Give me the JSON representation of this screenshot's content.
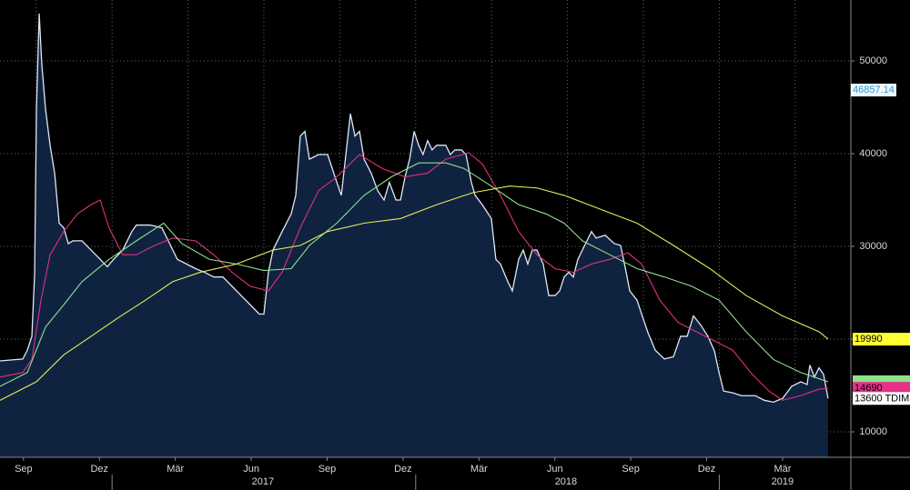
{
  "chart_data": {
    "type": "line",
    "xlim": [
      -0.43,
      33.2
    ],
    "ylim": [
      7255,
      56570
    ],
    "yticks": [
      10000,
      20000,
      30000,
      40000,
      50000
    ],
    "grid": true,
    "xgrid": [
      1,
      4,
      7,
      10,
      13,
      16,
      19,
      22,
      25,
      28,
      31
    ],
    "xticks": [
      {
        "value": 0.5,
        "label": "Sep"
      },
      {
        "value": 3.5,
        "label": "Dez"
      },
      {
        "value": 6.5,
        "label": "Mär"
      },
      {
        "value": 9.5,
        "label": "Jun"
      },
      {
        "value": 12.5,
        "label": "Sep"
      },
      {
        "value": 15.5,
        "label": "Dez"
      },
      {
        "value": 18.5,
        "label": "Mär"
      },
      {
        "value": 21.5,
        "label": "Jun"
      },
      {
        "value": 24.5,
        "label": "Sep"
      },
      {
        "value": 27.5,
        "label": "Dez"
      },
      {
        "value": 30.5,
        "label": "Mär"
      }
    ],
    "year_ticks": [
      {
        "value": 9.96,
        "label": "2017"
      },
      {
        "value": 21.94,
        "label": "2018"
      },
      {
        "value": 30.5,
        "label": "2019"
      }
    ],
    "year_separators": [
      4,
      16,
      28
    ],
    "marker": 46857.14,
    "series": [
      {
        "color": "#dfe8f5",
        "fill": "#0f2341",
        "show_last_value": true,
        "tag_color": "#ffffff",
        "unit": "TDIM",
        "x": [
          -0.43,
          0.47,
          0.65,
          0.83,
          0.94,
          1.01,
          1.12,
          1.22,
          1.37,
          1.55,
          1.73,
          1.91,
          2.09,
          2.27,
          2.45,
          2.81,
          3.17,
          3.53,
          3.81,
          4.06,
          4.42,
          4.78,
          4.96,
          5.5,
          5.97,
          6.22,
          6.58,
          6.94,
          7.3,
          7.66,
          8.02,
          8.38,
          8.74,
          9.1,
          9.46,
          9.82,
          10.0,
          10.18,
          10.36,
          10.72,
          11.08,
          11.26,
          11.44,
          11.62,
          11.8,
          12.16,
          12.52,
          12.81,
          13.06,
          13.24,
          13.42,
          13.6,
          13.78,
          13.96,
          14.24,
          14.5,
          14.75,
          14.96,
          15.22,
          15.4,
          15.58,
          15.76,
          15.94,
          16.12,
          16.29,
          16.47,
          16.65,
          16.83,
          17.19,
          17.37,
          17.55,
          17.81,
          17.99,
          18.2,
          18.35,
          18.63,
          18.99,
          19.17,
          19.35,
          19.64,
          19.82,
          20.07,
          20.25,
          20.43,
          20.61,
          20.79,
          21.04,
          21.26,
          21.51,
          21.69,
          21.87,
          22.05,
          22.23,
          22.41,
          22.77,
          22.95,
          23.13,
          23.49,
          23.85,
          24.1,
          24.32,
          24.46,
          24.75,
          24.93,
          25.18,
          25.47,
          25.83,
          26.19,
          26.47,
          26.73,
          26.98,
          27.27,
          27.55,
          27.81,
          27.99,
          28.17,
          28.53,
          28.88,
          29.42,
          29.78,
          30.14,
          30.5,
          30.86,
          31.22,
          31.47,
          31.58,
          31.76,
          31.94,
          32.12,
          32.3
        ],
        "values": [
          17650,
          17850,
          18800,
          20300,
          27150,
          44800,
          55100,
          49700,
          44800,
          40900,
          37900,
          32500,
          32000,
          30300,
          30600,
          30600,
          29600,
          28600,
          27800,
          28600,
          29600,
          31600,
          32300,
          32300,
          32000,
          30600,
          28600,
          28100,
          27600,
          27200,
          26700,
          26700,
          25700,
          24700,
          23700,
          22700,
          22700,
          27200,
          29600,
          31600,
          33500,
          35500,
          41900,
          42400,
          39400,
          39900,
          39900,
          37500,
          35500,
          39900,
          44300,
          41900,
          42400,
          39400,
          37900,
          36000,
          35000,
          36900,
          35000,
          35000,
          37500,
          39400,
          42400,
          40900,
          39900,
          41400,
          40400,
          40900,
          40900,
          39900,
          40400,
          40400,
          39900,
          36900,
          35500,
          34500,
          33000,
          28600,
          28100,
          26200,
          25200,
          28600,
          29600,
          28100,
          29600,
          29600,
          28100,
          24700,
          24700,
          25200,
          26700,
          27200,
          26700,
          28600,
          30600,
          31600,
          30900,
          31200,
          30300,
          30100,
          27200,
          25200,
          24200,
          22700,
          20700,
          18800,
          17850,
          18100,
          20300,
          20300,
          22500,
          21500,
          20300,
          18700,
          16400,
          14400,
          14200,
          13900,
          13900,
          13400,
          13200,
          13600,
          14900,
          15400,
          15100,
          17200,
          15900,
          16900,
          16200,
          13600
        ]
      },
      {
        "color": "#e0307e",
        "show_last_value": true,
        "tag_color": "#e8308a",
        "x": [
          -0.43,
          0.47,
          0.83,
          1.19,
          1.55,
          2.09,
          2.63,
          3.17,
          3.53,
          3.88,
          4.42,
          4.96,
          5.68,
          6.4,
          7.3,
          8.02,
          8.74,
          9.46,
          10.18,
          10.72,
          11.44,
          12.16,
          12.88,
          13.78,
          14.68,
          15.58,
          16.47,
          17.19,
          18.09,
          18.63,
          19.35,
          20.07,
          20.79,
          21.51,
          22.23,
          22.95,
          23.67,
          24.39,
          24.93,
          25.65,
          26.37,
          27.09,
          27.81,
          28.53,
          29.24,
          29.96,
          30.5,
          31.22,
          31.94,
          32.3
        ],
        "values": [
          15900,
          16400,
          17800,
          24200,
          29100,
          31600,
          33500,
          34500,
          35000,
          32000,
          29100,
          29100,
          30100,
          30900,
          30600,
          29100,
          27200,
          25700,
          25200,
          27200,
          32000,
          36000,
          37500,
          39900,
          38400,
          37500,
          37900,
          39400,
          40100,
          38900,
          35500,
          31600,
          29100,
          27600,
          27200,
          28100,
          28600,
          29300,
          28100,
          24200,
          21800,
          20800,
          19800,
          18800,
          16400,
          14400,
          13400,
          13900,
          14600,
          14690
        ]
      },
      {
        "color": "#8ee08a",
        "show_last_value": false,
        "tag_color": "#8ee08a",
        "x": [
          -0.43,
          0.65,
          1.37,
          2.09,
          2.81,
          3.88,
          4.96,
          6.04,
          6.76,
          7.84,
          8.92,
          10.0,
          11.08,
          11.8,
          12.88,
          13.96,
          15.04,
          16.12,
          17.19,
          17.91,
          18.99,
          20.07,
          21.15,
          21.87,
          22.59,
          23.67,
          24.75,
          25.83,
          26.91,
          27.99,
          29.06,
          30.14,
          31.22,
          32.3
        ],
        "values": [
          14900,
          16400,
          21300,
          23700,
          26200,
          28600,
          30600,
          32500,
          30300,
          28600,
          28100,
          27400,
          27600,
          30100,
          32500,
          35500,
          37500,
          39000,
          39000,
          38400,
          36500,
          34500,
          33500,
          32500,
          30600,
          29100,
          27600,
          26700,
          25700,
          24200,
          20800,
          17800,
          16400,
          15400
        ]
      },
      {
        "color": "#e8e85a",
        "show_last_value": true,
        "tag_color": "#ffff33",
        "x": [
          -0.43,
          1.01,
          2.09,
          3.17,
          4.24,
          5.32,
          6.4,
          7.48,
          8.92,
          10.36,
          11.44,
          12.52,
          13.96,
          15.4,
          16.83,
          18.27,
          19.71,
          20.79,
          21.87,
          23.31,
          24.75,
          26.19,
          27.63,
          29.06,
          30.5,
          31.94,
          32.3
        ],
        "values": [
          13400,
          15400,
          18300,
          20300,
          22300,
          24200,
          26200,
          27200,
          28100,
          29600,
          30100,
          31600,
          32500,
          33000,
          34500,
          35800,
          36500,
          36300,
          35500,
          34000,
          32500,
          30100,
          27600,
          24700,
          22500,
          20800,
          19990
        ]
      }
    ]
  }
}
